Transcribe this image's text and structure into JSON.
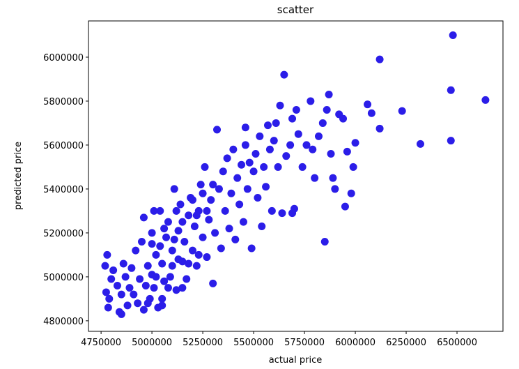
{
  "chart_data": {
    "type": "scatter",
    "title": "scatter",
    "x_label": "actual price",
    "y_label": "predicted price",
    "color": "#2b1de8",
    "x": [
      4770000,
      4780000,
      4775000,
      4785000,
      4790000,
      4800000,
      4810000,
      4830000,
      4840000,
      4850000,
      4850000,
      4860000,
      4870000,
      4880000,
      4890000,
      4900000,
      4910000,
      4920000,
      4930000,
      4940000,
      4950000,
      4960000,
      4970000,
      4980000,
      4990000,
      5000000,
      5000000,
      5010000,
      5020000,
      5030000,
      5040000,
      5050000,
      5060000,
      5070000,
      5080000,
      5090000,
      5100000,
      5110000,
      5120000,
      5130000,
      5140000,
      5150000,
      5160000,
      5170000,
      5180000,
      5190000,
      5200000,
      5210000,
      5220000,
      5230000,
      5240000,
      5250000,
      5260000,
      5270000,
      5280000,
      5290000,
      5300000,
      5310000,
      5320000,
      5330000,
      5340000,
      5350000,
      5360000,
      5370000,
      5380000,
      5390000,
      5400000,
      5410000,
      5420000,
      5430000,
      5440000,
      5450000,
      5460000,
      5470000,
      5480000,
      5490000,
      5500000,
      5510000,
      5520000,
      5530000,
      5540000,
      5550000,
      5560000,
      5570000,
      5580000,
      5590000,
      5600000,
      5610000,
      5620000,
      5630000,
      5640000,
      5650000,
      5660000,
      5680000,
      5700000,
      5710000,
      5720000,
      5740000,
      5760000,
      5780000,
      5790000,
      5800000,
      5820000,
      5840000,
      5850000,
      5860000,
      5870000,
      5880000,
      5890000,
      5900000,
      5920000,
      5940000,
      5950000,
      5960000,
      5980000,
      5990000,
      6000000,
      6060000,
      6080000,
      6120000,
      6120000,
      6230000,
      6320000,
      6470000,
      6470000,
      6480000,
      6640000,
      5690000,
      5690000,
      5460000,
      5020000,
      5050000,
      5080000,
      5100000,
      5130000,
      5150000,
      5000000,
      4980000,
      5060000,
      5110000,
      5200000,
      5230000,
      5250000,
      5150000,
      5180000,
      5270000,
      5300000,
      5220000,
      5120000,
      5050000,
      4960000,
      5010000,
      5040000
    ],
    "y": [
      5050000,
      5100000,
      4930000,
      4860000,
      4900000,
      4990000,
      5030000,
      4960000,
      4840000,
      4830000,
      4920000,
      5060000,
      5000000,
      4870000,
      4950000,
      5040000,
      4920000,
      5120000,
      4880000,
      4990000,
      5160000,
      5270000,
      4960000,
      5050000,
      4900000,
      5010000,
      5200000,
      4950000,
      5100000,
      4860000,
      5300000,
      5060000,
      4980000,
      5180000,
      5250000,
      5000000,
      5120000,
      5400000,
      4940000,
      5210000,
      5330000,
      5070000,
      5160000,
      4990000,
      5280000,
      5360000,
      5120000,
      5230000,
      5050000,
      5300000,
      5420000,
      5180000,
      5500000,
      5090000,
      5260000,
      5350000,
      4970000,
      5200000,
      5670000,
      5400000,
      5130000,
      5480000,
      5300000,
      5540000,
      5220000,
      5380000,
      5580000,
      5170000,
      5450000,
      5330000,
      5510000,
      5250000,
      5600000,
      5400000,
      5520000,
      5130000,
      5480000,
      5560000,
      5360000,
      5640000,
      5230000,
      5500000,
      5410000,
      5690000,
      5580000,
      5300000,
      5620000,
      5700000,
      5500000,
      5780000,
      5290000,
      5920000,
      5550000,
      5600000,
      5310000,
      5760000,
      5650000,
      5500000,
      5600000,
      5800000,
      5580000,
      5450000,
      5640000,
      5700000,
      5160000,
      5760000,
      5830000,
      5560000,
      5450000,
      5400000,
      5740000,
      5720000,
      5320000,
      5570000,
      5380000,
      5500000,
      5610000,
      5785000,
      5745000,
      5990000,
      5675000,
      5755000,
      5605000,
      5620000,
      5850000,
      6100000,
      5805000,
      5290000,
      5720000,
      5680000,
      5000000,
      4900000,
      4950000,
      5050000,
      5080000,
      5250000,
      5150000,
      4880000,
      5220000,
      5170000,
      5350000,
      5100000,
      5380000,
      4950000,
      5060000,
      5300000,
      5420000,
      5280000,
      5300000,
      4870000,
      4850000,
      5300000,
      5140000
    ],
    "xlim": [
      4688000,
      6726000
    ],
    "ylim": [
      4752000,
      6165000
    ],
    "xticks": [
      4750000,
      5000000,
      5250000,
      5500000,
      5750000,
      6000000,
      6250000,
      6500000
    ],
    "yticks": [
      4800000,
      5000000,
      5200000,
      5400000,
      5600000,
      5800000,
      6000000
    ]
  }
}
